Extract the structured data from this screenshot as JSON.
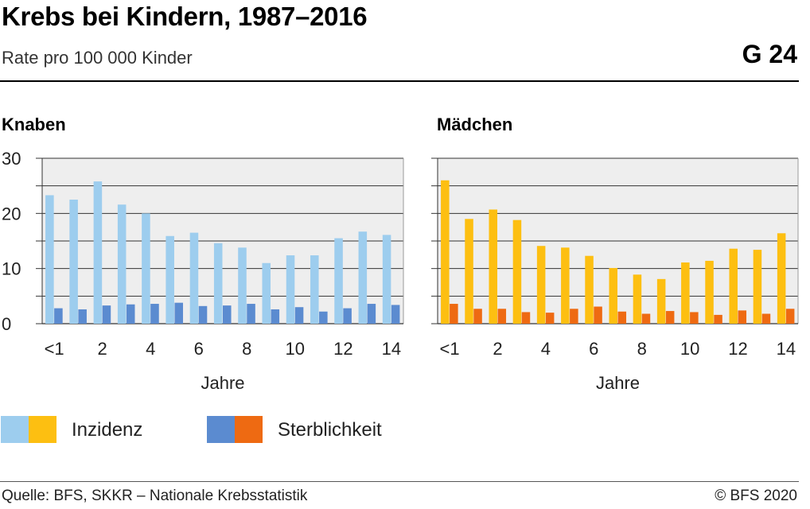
{
  "header": {
    "title": "Krebs bei Kindern, 1987–2016",
    "subtitle": "Rate pro 100 000 Kinder",
    "graphic_number": "G 24"
  },
  "legend": {
    "incidence_label": "Inzidenz",
    "mortality_label": "Sterblichkeit"
  },
  "footer": {
    "source": "Quelle: BFS, SKKR – Nationale Krebsstatistik",
    "copyright": "© BFS 2020"
  },
  "colors": {
    "boys_incidence": "#9dcdee",
    "boys_mortality": "#5b8bd0",
    "girls_incidence": "#fdbf11",
    "girls_mortality": "#ee6a12",
    "plot_background": "#eeeeee",
    "gridline": "#333333"
  },
  "chart_data": [
    {
      "type": "bar",
      "title": "Knaben",
      "xlabel": "Jahre",
      "ylabel": "",
      "ylim": [
        0,
        30
      ],
      "yticks": [
        "0",
        "10",
        "20",
        "30"
      ],
      "categories": [
        "<1",
        "1",
        "2",
        "3",
        "4",
        "5",
        "6",
        "7",
        "8",
        "9",
        "10",
        "11",
        "12",
        "13",
        "14"
      ],
      "xtick_labels": [
        "<1",
        "",
        "2",
        "",
        "4",
        "",
        "6",
        "",
        "8",
        "",
        "10",
        "",
        "12",
        "",
        "14"
      ],
      "series": [
        {
          "name": "Inzidenz",
          "values": [
            23.3,
            22.5,
            25.8,
            21.6,
            20.0,
            15.9,
            16.5,
            14.6,
            13.8,
            11.0,
            12.4,
            12.4,
            15.5,
            16.7,
            16.1
          ]
        },
        {
          "name": "Sterblichkeit",
          "values": [
            2.8,
            2.6,
            3.3,
            3.5,
            3.6,
            3.8,
            3.2,
            3.3,
            3.6,
            2.6,
            3.0,
            2.2,
            2.8,
            3.6,
            3.4
          ]
        }
      ],
      "grid": true
    },
    {
      "type": "bar",
      "title": "Mädchen",
      "xlabel": "Jahre",
      "ylabel": "",
      "ylim": [
        0,
        30
      ],
      "yticks": [
        "0",
        "10",
        "20",
        "30"
      ],
      "categories": [
        "<1",
        "1",
        "2",
        "3",
        "4",
        "5",
        "6",
        "7",
        "8",
        "9",
        "10",
        "11",
        "12",
        "13",
        "14"
      ],
      "xtick_labels": [
        "<1",
        "",
        "2",
        "",
        "4",
        "",
        "6",
        "",
        "8",
        "",
        "10",
        "",
        "12",
        "",
        "14"
      ],
      "series": [
        {
          "name": "Inzidenz",
          "values": [
            26.0,
            19.0,
            20.7,
            18.8,
            14.1,
            13.8,
            12.3,
            10.1,
            8.9,
            8.1,
            11.1,
            11.4,
            13.6,
            13.4,
            16.4
          ]
        },
        {
          "name": "Sterblichkeit",
          "values": [
            3.6,
            2.7,
            2.7,
            2.1,
            2.0,
            2.7,
            3.1,
            2.2,
            1.8,
            2.3,
            2.1,
            1.6,
            2.4,
            1.8,
            2.7
          ]
        }
      ],
      "grid": true
    }
  ]
}
